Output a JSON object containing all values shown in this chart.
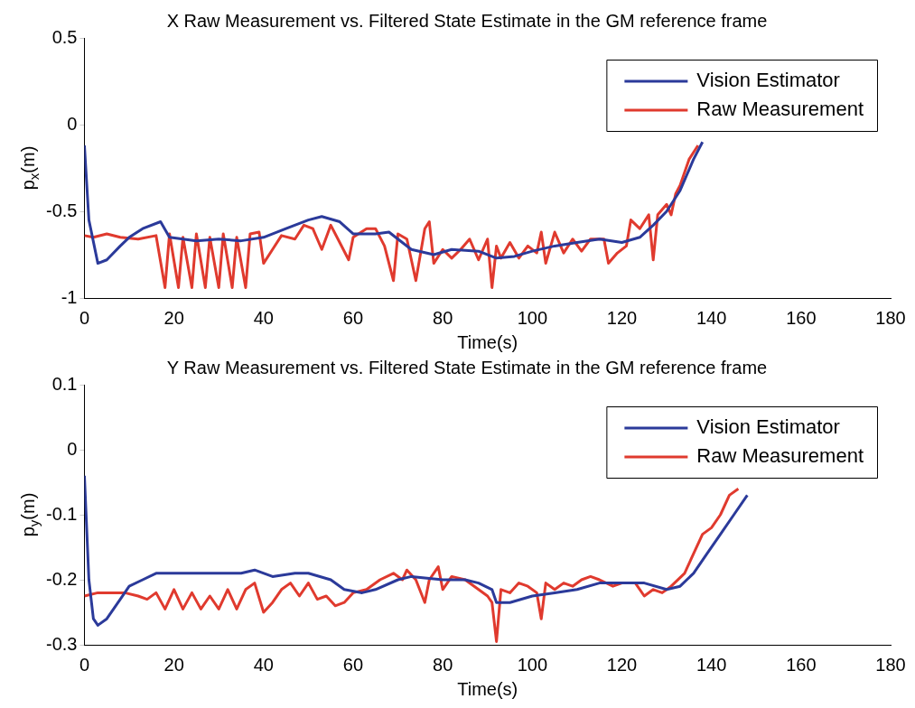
{
  "chart_data": [
    {
      "type": "line",
      "title": "X Raw Measurement vs. Filtered State Estimate in the GM reference frame",
      "xlabel": "Time(s)",
      "ylabel": "p$_{x}$(m)",
      "xlim": [
        0,
        180
      ],
      "xticks": [
        0,
        20,
        40,
        60,
        80,
        100,
        120,
        140,
        160,
        180
      ],
      "ylim": [
        -1,
        0.5
      ],
      "yticks": [
        -1,
        -0.5,
        0,
        0.5
      ],
      "grid": false,
      "legend": "top right",
      "line_style": "solid",
      "marker": "none",
      "series": [
        {
          "name": "Vision Estimator",
          "color": "#2b3a9a",
          "x": [
            0,
            1,
            3,
            5,
            8,
            10,
            13,
            17,
            19,
            22,
            25,
            30,
            35,
            40,
            45,
            50,
            53,
            57,
            60,
            65,
            68,
            70,
            73,
            78,
            82,
            88,
            92,
            96,
            100,
            105,
            110,
            115,
            120,
            124,
            127,
            130,
            133,
            136,
            138
          ],
          "values": [
            -0.12,
            -0.55,
            -0.8,
            -0.78,
            -0.7,
            -0.65,
            -0.6,
            -0.56,
            -0.65,
            -0.66,
            -0.67,
            -0.66,
            -0.67,
            -0.65,
            -0.6,
            -0.55,
            -0.53,
            -0.56,
            -0.63,
            -0.63,
            -0.62,
            -0.66,
            -0.72,
            -0.75,
            -0.72,
            -0.73,
            -0.77,
            -0.76,
            -0.73,
            -0.7,
            -0.68,
            -0.66,
            -0.68,
            -0.65,
            -0.58,
            -0.5,
            -0.38,
            -0.2,
            -0.1
          ]
        },
        {
          "name": "Raw Measurement",
          "color": "#e03a2e",
          "x": [
            0,
            2,
            5,
            8,
            12,
            16,
            18,
            19,
            21,
            22,
            24,
            25,
            27,
            28,
            30,
            31,
            33,
            34,
            36,
            37,
            39,
            40,
            42,
            44,
            47,
            49,
            51,
            53,
            55,
            57,
            59,
            60,
            63,
            65,
            67,
            69,
            70,
            72,
            74,
            76,
            77,
            78,
            80,
            82,
            84,
            86,
            88,
            90,
            91,
            92,
            93,
            95,
            97,
            99,
            101,
            102,
            103,
            105,
            107,
            109,
            111,
            113,
            116,
            117,
            119,
            121,
            122,
            124,
            126,
            127,
            128,
            130,
            131,
            132,
            133,
            135,
            137
          ],
          "values": [
            -0.64,
            -0.65,
            -0.63,
            -0.65,
            -0.66,
            -0.64,
            -0.94,
            -0.63,
            -0.94,
            -0.65,
            -0.94,
            -0.63,
            -0.94,
            -0.65,
            -0.94,
            -0.63,
            -0.94,
            -0.65,
            -0.94,
            -0.63,
            -0.62,
            -0.8,
            -0.72,
            -0.64,
            -0.66,
            -0.58,
            -0.6,
            -0.72,
            -0.58,
            -0.68,
            -0.78,
            -0.65,
            -0.6,
            -0.6,
            -0.7,
            -0.9,
            -0.63,
            -0.66,
            -0.9,
            -0.6,
            -0.56,
            -0.8,
            -0.72,
            -0.77,
            -0.72,
            -0.66,
            -0.78,
            -0.66,
            -0.94,
            -0.7,
            -0.77,
            -0.68,
            -0.77,
            -0.7,
            -0.74,
            -0.62,
            -0.8,
            -0.62,
            -0.74,
            -0.66,
            -0.73,
            -0.66,
            -0.66,
            -0.8,
            -0.74,
            -0.7,
            -0.55,
            -0.6,
            -0.52,
            -0.78,
            -0.52,
            -0.46,
            -0.52,
            -0.4,
            -0.35,
            -0.2,
            -0.12
          ]
        }
      ]
    },
    {
      "type": "line",
      "title": "Y Raw Measurement vs. Filtered State Estimate in the GM reference frame",
      "xlabel": "Time(s)",
      "ylabel": "p$_{y}$(m)",
      "xlim": [
        0,
        180
      ],
      "xticks": [
        0,
        20,
        40,
        60,
        80,
        100,
        120,
        140,
        160,
        180
      ],
      "ylim": [
        -0.3,
        0.1
      ],
      "yticks": [
        -0.3,
        -0.2,
        -0.1,
        0,
        0.1
      ],
      "grid": false,
      "legend": "top right",
      "line_style": "solid",
      "marker": "none",
      "series": [
        {
          "name": "Vision Estimator",
          "color": "#2b3a9a",
          "x": [
            0,
            1,
            2,
            3,
            5,
            8,
            10,
            13,
            16,
            20,
            25,
            30,
            35,
            38,
            42,
            47,
            50,
            55,
            58,
            62,
            65,
            70,
            73,
            80,
            85,
            88,
            91,
            92,
            95,
            100,
            105,
            110,
            115,
            120,
            125,
            130,
            133,
            136,
            139,
            142,
            145,
            148
          ],
          "values": [
            -0.04,
            -0.2,
            -0.26,
            -0.27,
            -0.26,
            -0.23,
            -0.21,
            -0.2,
            -0.19,
            -0.19,
            -0.19,
            -0.19,
            -0.19,
            -0.185,
            -0.195,
            -0.19,
            -0.19,
            -0.2,
            -0.215,
            -0.22,
            -0.215,
            -0.2,
            -0.195,
            -0.2,
            -0.2,
            -0.205,
            -0.215,
            -0.235,
            -0.235,
            -0.225,
            -0.22,
            -0.215,
            -0.205,
            -0.205,
            -0.205,
            -0.215,
            -0.21,
            -0.19,
            -0.16,
            -0.13,
            -0.1,
            -0.07
          ]
        },
        {
          "name": "Raw Measurement",
          "color": "#e03a2e",
          "x": [
            0,
            3,
            6,
            9,
            12,
            14,
            16,
            18,
            20,
            22,
            24,
            26,
            28,
            30,
            32,
            34,
            36,
            38,
            40,
            42,
            44,
            46,
            48,
            50,
            52,
            54,
            56,
            58,
            60,
            63,
            66,
            69,
            71,
            72,
            74,
            76,
            77,
            79,
            80,
            82,
            85,
            88,
            90,
            91,
            92,
            93,
            95,
            97,
            99,
            101,
            102,
            103,
            105,
            107,
            109,
            111,
            113,
            115,
            118,
            120,
            123,
            125,
            127,
            129,
            131,
            134,
            136,
            138,
            140,
            142,
            144,
            146
          ],
          "values": [
            -0.225,
            -0.22,
            -0.22,
            -0.22,
            -0.225,
            -0.23,
            -0.22,
            -0.245,
            -0.215,
            -0.245,
            -0.22,
            -0.245,
            -0.225,
            -0.245,
            -0.215,
            -0.245,
            -0.215,
            -0.205,
            -0.25,
            -0.235,
            -0.215,
            -0.205,
            -0.225,
            -0.205,
            -0.23,
            -0.225,
            -0.24,
            -0.235,
            -0.22,
            -0.215,
            -0.2,
            -0.19,
            -0.2,
            -0.185,
            -0.2,
            -0.235,
            -0.2,
            -0.18,
            -0.215,
            -0.195,
            -0.2,
            -0.215,
            -0.225,
            -0.235,
            -0.295,
            -0.215,
            -0.22,
            -0.205,
            -0.21,
            -0.22,
            -0.26,
            -0.205,
            -0.215,
            -0.205,
            -0.21,
            -0.2,
            -0.195,
            -0.2,
            -0.21,
            -0.205,
            -0.205,
            -0.225,
            -0.215,
            -0.22,
            -0.21,
            -0.19,
            -0.16,
            -0.13,
            -0.12,
            -0.1,
            -0.07,
            -0.06
          ]
        }
      ]
    }
  ]
}
